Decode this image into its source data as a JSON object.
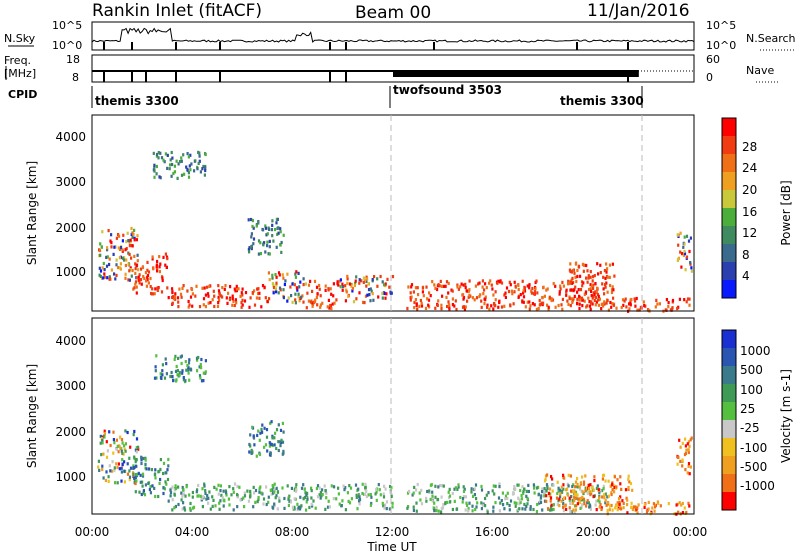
{
  "header": {
    "station": "Rankin Inlet (fitACF)",
    "beam": "Beam 00",
    "date": "11/Jan/2016"
  },
  "top_panels": {
    "nsky_label": "N.Sky",
    "nsearch_label": "N.Search",
    "freq_label_1": "Freq.",
    "freq_label_2": "[MHz]",
    "nave_label": "Nave",
    "cpid_label": "CPID",
    "noise_left_ticks": [
      "10^5",
      "10^0"
    ],
    "noise_right_ticks": [
      "10^5",
      "10^0"
    ],
    "freq_left_ticks": [
      "18",
      "8"
    ],
    "freq_right_ticks": [
      "60",
      "0"
    ]
  },
  "cpid_segments": [
    {
      "name": "themis 3300",
      "start_hour": 0.0,
      "end_hour": 12.0
    },
    {
      "name": "twofsound 3503",
      "start_hour": 12.0,
      "end_hour": 22.0
    },
    {
      "name": "themis 3300",
      "start_hour": 22.0,
      "end_hour": 24.0
    }
  ],
  "colors": {
    "power": [
      "#0a1aff",
      "#2c3fae",
      "#3a6a8c",
      "#3f8a5e",
      "#4cae3a",
      "#c8c83a",
      "#f0a020",
      "#f07018",
      "#f03c10",
      "#ff0000"
    ],
    "velocity": [
      "#1a30d0",
      "#2a55b0",
      "#3a7a8a",
      "#3f9a55",
      "#55c040",
      "#c8c8c8",
      "#f0c020",
      "#f0a020",
      "#f07018",
      "#ff0000"
    ]
  },
  "chart_data": [
    {
      "type": "heatmap",
      "panel": "power",
      "ylabel": "Slant Range [km]",
      "xlabel": "Time UT",
      "x_ticks": [
        "00:00",
        "04:00",
        "08:00",
        "12:00",
        "16:00",
        "20:00",
        "00:00"
      ],
      "y_ticks": [
        "1000",
        "2000",
        "3000",
        "4000"
      ],
      "xlim_hours": [
        0,
        24
      ],
      "ylim_km": [
        180,
        4600
      ],
      "colorbar_label": "Power [dB]",
      "colorbar_ticks": [
        "4",
        "8",
        "12",
        "16",
        "20",
        "24",
        "28"
      ],
      "dashed_lines_hours": [
        12,
        22
      ],
      "regions": [
        {
          "t0": 0.2,
          "t1": 1.8,
          "r0": 900,
          "r1": 2100,
          "level": "mixed"
        },
        {
          "t0": 1.6,
          "t1": 3.0,
          "r0": 600,
          "r1": 1500,
          "level": "high"
        },
        {
          "t0": 3.0,
          "t1": 7.0,
          "r0": 300,
          "r1": 800,
          "level": "high"
        },
        {
          "t0": 7.0,
          "t1": 8.5,
          "r0": 400,
          "r1": 1100,
          "level": "mixed"
        },
        {
          "t0": 8.5,
          "t1": 9.8,
          "r0": 250,
          "r1": 900,
          "level": "high"
        },
        {
          "t0": 9.8,
          "t1": 12.0,
          "r0": 400,
          "r1": 1000,
          "level": "mixed"
        },
        {
          "t0": 12.5,
          "t1": 20.5,
          "r0": 250,
          "r1": 900,
          "level": "high"
        },
        {
          "t0": 19.0,
          "t1": 20.8,
          "r0": 300,
          "r1": 1300,
          "level": "high"
        },
        {
          "t0": 20.5,
          "t1": 23.9,
          "r0": 200,
          "r1": 500,
          "level": "high"
        },
        {
          "t0": 23.3,
          "t1": 23.9,
          "r0": 1100,
          "r1": 2000,
          "level": "mixed"
        },
        {
          "t0": 6.2,
          "t1": 7.6,
          "r0": 1500,
          "r1": 2300,
          "level": "low"
        },
        {
          "t0": 2.4,
          "t1": 4.5,
          "r0": 3200,
          "r1": 3800,
          "level": "low"
        }
      ]
    },
    {
      "type": "heatmap",
      "panel": "velocity",
      "ylabel": "Slant Range [km]",
      "xlabel": "Time UT",
      "x_ticks": [
        "00:00",
        "04:00",
        "08:00",
        "12:00",
        "16:00",
        "20:00",
        "00:00"
      ],
      "y_ticks": [
        "1000",
        "2000",
        "3000",
        "4000"
      ],
      "xlim_hours": [
        0,
        24
      ],
      "ylim_km": [
        180,
        4600
      ],
      "colorbar_label": "Velocity [m s-1]",
      "colorbar_ticks": [
        "1000",
        "500",
        "100",
        "25",
        "-25",
        "-100",
        "-500",
        "-1000"
      ],
      "dashed_lines_hours": [
        12,
        22
      ],
      "regions": [
        {
          "t0": 0.2,
          "t1": 1.8,
          "r0": 900,
          "r1": 2100,
          "level": "mixed"
        },
        {
          "t0": 1.6,
          "t1": 3.0,
          "r0": 600,
          "r1": 1500,
          "level": "low"
        },
        {
          "t0": 3.0,
          "t1": 12.0,
          "r0": 300,
          "r1": 900,
          "level": "mid"
        },
        {
          "t0": 12.5,
          "t1": 20.5,
          "r0": 250,
          "r1": 900,
          "level": "mid"
        },
        {
          "t0": 18.0,
          "t1": 21.5,
          "r0": 300,
          "r1": 1100,
          "level": "neg"
        },
        {
          "t0": 20.5,
          "t1": 23.9,
          "r0": 200,
          "r1": 500,
          "level": "neg"
        },
        {
          "t0": 23.3,
          "t1": 23.9,
          "r0": 1100,
          "r1": 2000,
          "level": "neg"
        },
        {
          "t0": 6.2,
          "t1": 7.6,
          "r0": 1500,
          "r1": 2300,
          "level": "low"
        },
        {
          "t0": 2.4,
          "t1": 4.5,
          "r0": 3200,
          "r1": 3800,
          "level": "low"
        }
      ]
    }
  ]
}
